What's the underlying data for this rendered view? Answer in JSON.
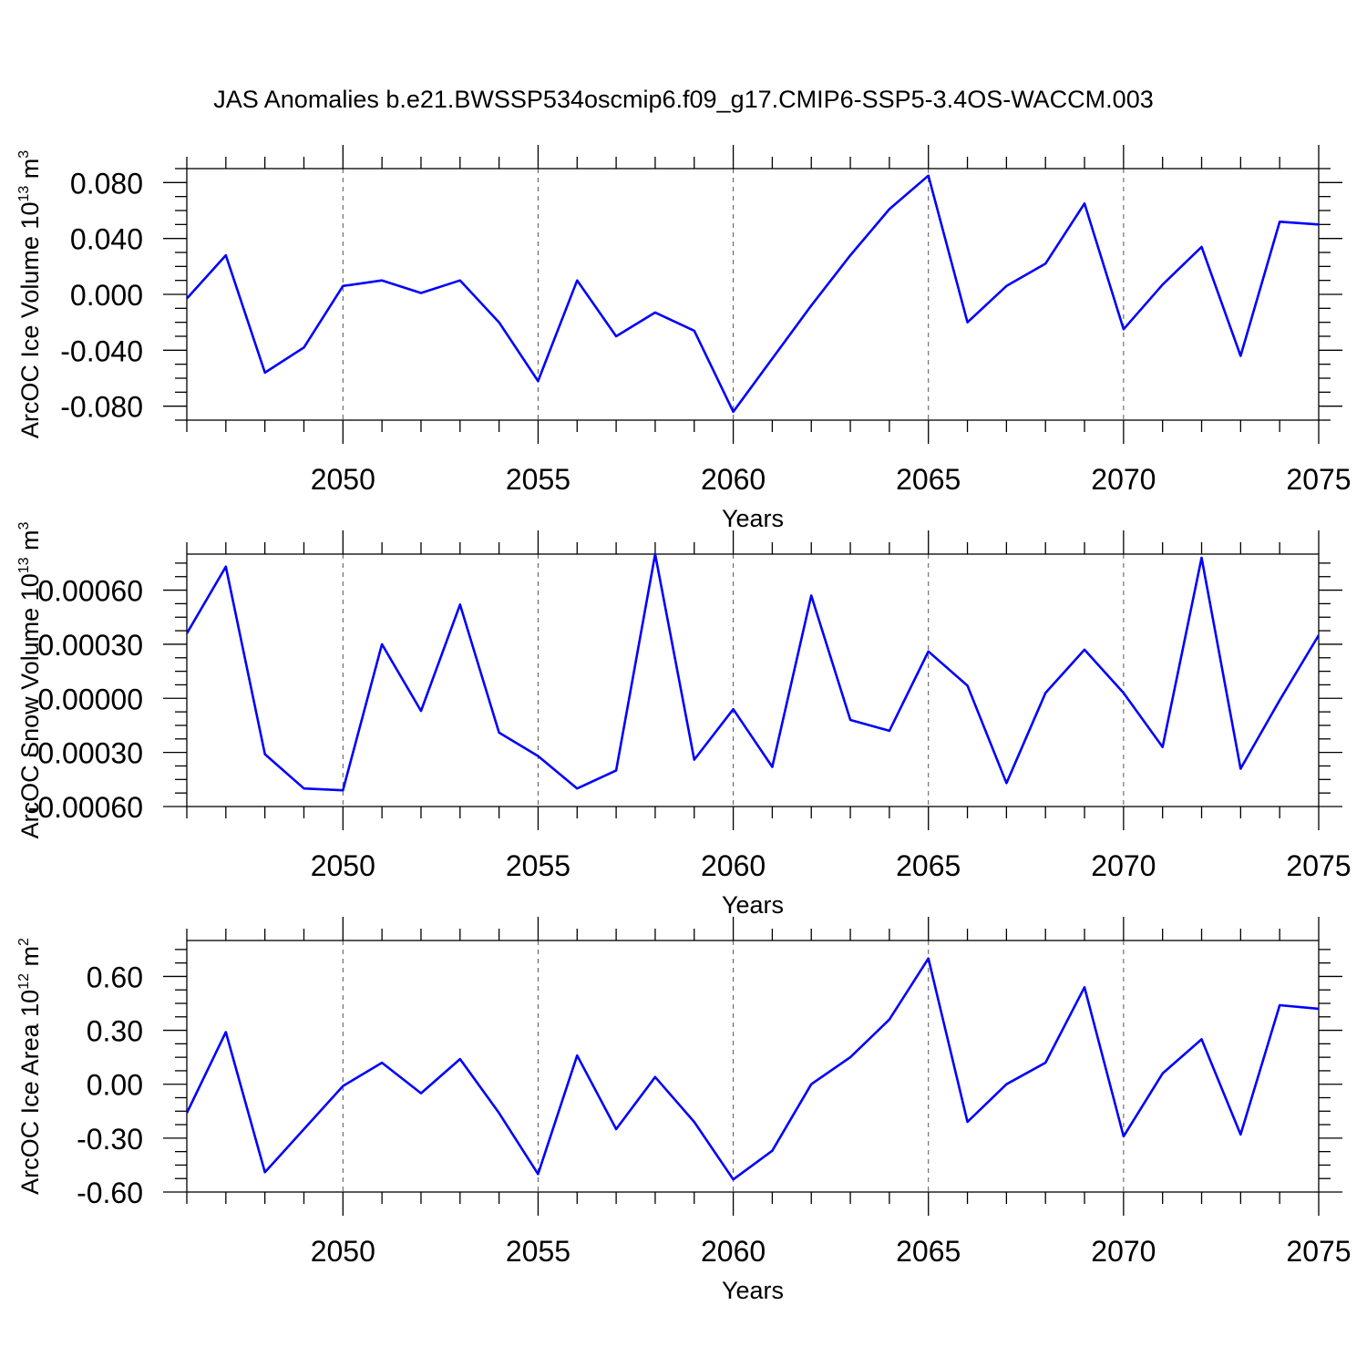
{
  "title": "JAS Anomalies b.e21.BWSSP534oscmip6.f09_g17.CMIP6-SSP5-3.4OS-WACCM.003",
  "colors": {
    "series": "#0000ff",
    "frame": "#000000",
    "grid": "#555555"
  },
  "chart_data": [
    {
      "type": "line",
      "xlabel": "Years",
      "ylabel": {
        "text": "ArcOC Ice Volume 10",
        "sup": "13",
        "unit": " m",
        "unit_sup": "3"
      },
      "xlim": [
        2046,
        2075
      ],
      "ylim": [
        -0.09,
        0.09
      ],
      "xticks": [
        2050,
        2055,
        2060,
        2065,
        2070,
        2075
      ],
      "yticks": [
        -0.08,
        -0.04,
        0.0,
        0.04,
        0.08
      ],
      "ytick_labels": [
        "-0.080",
        "-0.040",
        "0.000",
        "0.040",
        "0.080"
      ],
      "grid_x": [
        2050,
        2055,
        2060,
        2065,
        2070
      ],
      "x": [
        2046,
        2047,
        2048,
        2049,
        2050,
        2051,
        2052,
        2053,
        2054,
        2055,
        2056,
        2057,
        2058,
        2059,
        2060,
        2061,
        2062,
        2063,
        2064,
        2065,
        2066,
        2067,
        2068,
        2069,
        2070,
        2071,
        2072,
        2073,
        2074,
        2075
      ],
      "y": [
        -0.003,
        0.028,
        -0.056,
        -0.038,
        0.006,
        0.01,
        0.001,
        0.01,
        -0.02,
        -0.062,
        0.01,
        -0.03,
        -0.013,
        -0.026,
        -0.084,
        -0.046,
        -0.008,
        0.028,
        0.061,
        0.085,
        -0.02,
        0.006,
        0.022,
        0.065,
        -0.025,
        0.007,
        0.034,
        -0.044,
        0.052,
        0.05
      ]
    },
    {
      "type": "line",
      "xlabel": "Years",
      "ylabel": {
        "text": "ArcOC Snow Volume 10",
        "sup": "13",
        "unit": " m",
        "unit_sup": "3"
      },
      "xlim": [
        2046,
        2075
      ],
      "ylim": [
        -0.0006,
        0.0008
      ],
      "xticks": [
        2050,
        2055,
        2060,
        2065,
        2070,
        2075
      ],
      "yticks": [
        -0.0006,
        -0.0003,
        0.0,
        0.0003,
        0.0006
      ],
      "ytick_labels": [
        "-0.00060",
        "-0.00030",
        "0.00000",
        "0.00030",
        "0.00060"
      ],
      "grid_x": [
        2050,
        2055,
        2060,
        2065,
        2070
      ],
      "x": [
        2046,
        2047,
        2048,
        2049,
        2050,
        2051,
        2052,
        2053,
        2054,
        2055,
        2056,
        2057,
        2058,
        2059,
        2060,
        2061,
        2062,
        2063,
        2064,
        2065,
        2066,
        2067,
        2068,
        2069,
        2070,
        2071,
        2072,
        2073,
        2074,
        2075
      ],
      "y": [
        0.00036,
        0.00073,
        -0.00031,
        -0.0005,
        -0.00051,
        0.0003,
        -7e-05,
        0.00052,
        -0.00019,
        -0.00032,
        -0.0005,
        -0.0004,
        0.0008,
        -0.00034,
        -6e-05,
        -0.00038,
        0.00057,
        -0.00012,
        -0.00018,
        0.00026,
        7e-05,
        -0.00047,
        3e-05,
        0.00027,
        3e-05,
        -0.00027,
        0.00078,
        -0.00039,
        -1e-05,
        0.00035
      ]
    },
    {
      "type": "line",
      "xlabel": "Years",
      "ylabel": {
        "text": "ArcOC Ice Area 10",
        "sup": "12",
        "unit": " m",
        "unit_sup": "2"
      },
      "xlim": [
        2046,
        2075
      ],
      "ylim": [
        -0.6,
        0.8
      ],
      "xticks": [
        2050,
        2055,
        2060,
        2065,
        2070,
        2075
      ],
      "yticks": [
        -0.6,
        -0.3,
        0.0,
        0.3,
        0.6
      ],
      "ytick_labels": [
        "-0.60",
        "-0.30",
        "0.00",
        "0.30",
        "0.60"
      ],
      "grid_x": [
        2050,
        2055,
        2060,
        2065,
        2070
      ],
      "x": [
        2046,
        2047,
        2048,
        2049,
        2050,
        2051,
        2052,
        2053,
        2054,
        2055,
        2056,
        2057,
        2058,
        2059,
        2060,
        2061,
        2062,
        2063,
        2064,
        2065,
        2066,
        2067,
        2068,
        2069,
        2070,
        2071,
        2072,
        2073,
        2074,
        2075
      ],
      "y": [
        -0.16,
        0.29,
        -0.49,
        -0.25,
        -0.01,
        0.12,
        -0.05,
        0.14,
        -0.16,
        -0.5,
        0.16,
        -0.25,
        0.04,
        -0.21,
        -0.53,
        -0.37,
        0.0,
        0.15,
        0.36,
        0.7,
        -0.21,
        0.0,
        0.12,
        0.54,
        -0.29,
        0.06,
        0.25,
        -0.28,
        0.44,
        0.42
      ]
    }
  ]
}
